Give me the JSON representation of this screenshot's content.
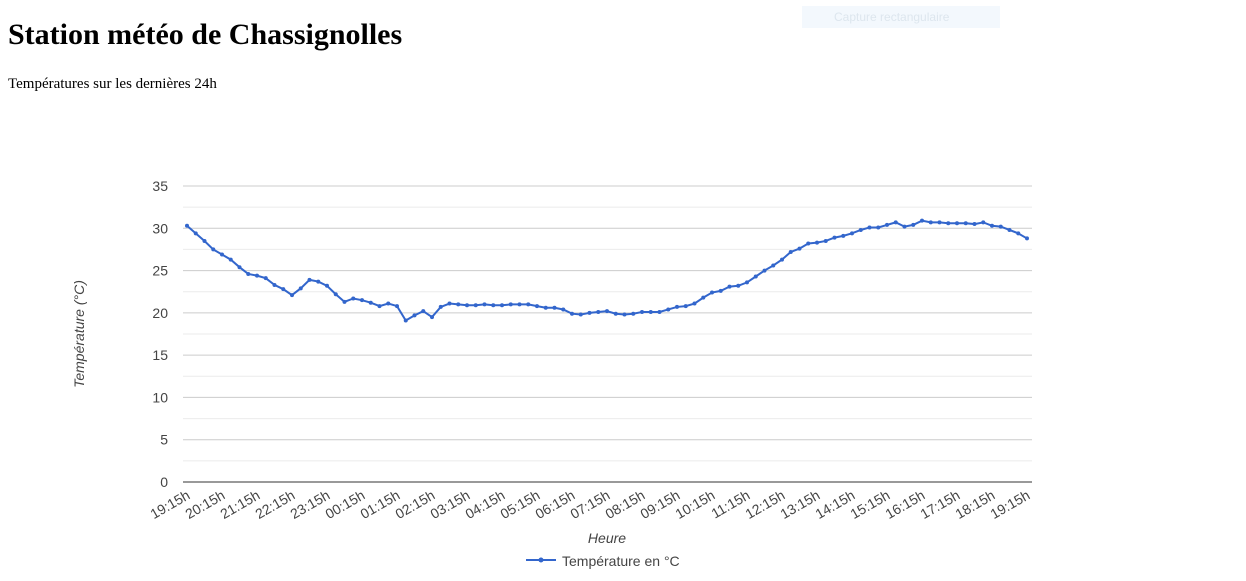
{
  "header": {
    "title": "Station météo de Chassignolles",
    "subtitle": "Températures sur les dernières 24h",
    "overlay": "Capture rectangulaire"
  },
  "chart_data": {
    "type": "line",
    "x_label": "Heure",
    "y_label": "Température (°C)",
    "categories": [
      "19:15h",
      null,
      null,
      null,
      "20:15h",
      null,
      null,
      null,
      "21:15h",
      null,
      null,
      null,
      "22:15h",
      null,
      null,
      null,
      "23:15h",
      null,
      null,
      null,
      "00:15h",
      null,
      null,
      null,
      "01:15h",
      null,
      null,
      null,
      "02:15h",
      null,
      null,
      null,
      "03:15h",
      null,
      null,
      null,
      "04:15h",
      null,
      null,
      null,
      "05:15h",
      null,
      null,
      null,
      "06:15h",
      null,
      null,
      null,
      "07:15h",
      null,
      null,
      null,
      "08:15h",
      null,
      null,
      null,
      "09:15h",
      null,
      null,
      null,
      "10:15h",
      null,
      null,
      null,
      "11:15h",
      null,
      null,
      null,
      "12:15h",
      null,
      null,
      null,
      "13:15h",
      null,
      null,
      null,
      "14:15h",
      null,
      null,
      null,
      "15:15h",
      null,
      null,
      null,
      "16:15h",
      null,
      null,
      null,
      "17:15h",
      null,
      null,
      null,
      "18:15h",
      null,
      null,
      null,
      "19:15h"
    ],
    "series": [
      {
        "name": "Température en °C",
        "color": "#3366cc",
        "values": [
          30.3,
          29.4,
          28.5,
          27.5,
          26.9,
          26.3,
          25.4,
          24.6,
          24.4,
          24.1,
          23.3,
          22.8,
          22.1,
          22.9,
          23.9,
          23.7,
          23.2,
          22.2,
          21.3,
          21.7,
          21.5,
          21.2,
          20.8,
          21.1,
          20.8,
          19.1,
          19.7,
          20.2,
          19.5,
          20.7,
          21.1,
          21.0,
          20.9,
          20.9,
          21.0,
          20.9,
          20.9,
          21.0,
          21.0,
          21.0,
          20.8,
          20.6,
          20.6,
          20.4,
          19.9,
          19.8,
          20.0,
          20.1,
          20.2,
          19.9,
          19.8,
          19.9,
          20.1,
          20.1,
          20.1,
          20.4,
          20.7,
          20.8,
          21.1,
          21.8,
          22.4,
          22.6,
          23.1,
          23.2,
          23.6,
          24.3,
          25.0,
          25.6,
          26.3,
          27.2,
          27.6,
          28.2,
          28.3,
          28.5,
          28.9,
          29.1,
          29.4,
          29.8,
          30.1,
          30.1,
          30.4,
          30.7,
          30.2,
          30.4,
          30.9,
          30.7,
          30.7,
          30.6,
          30.6,
          30.6,
          30.5,
          30.7,
          30.3,
          30.2,
          29.8,
          29.4,
          28.8
        ]
      }
    ],
    "ylim": [
      0,
      35
    ],
    "yticks": [
      0,
      5,
      10,
      15,
      20,
      25,
      30,
      35
    ],
    "grid": true,
    "minor_grid": true,
    "legend": "bottom"
  }
}
